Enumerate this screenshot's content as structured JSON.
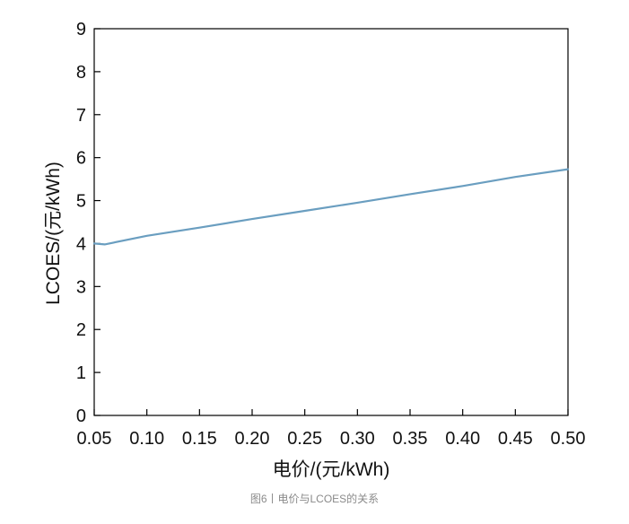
{
  "caption": "图6丨电价与LCOES的关系",
  "colors": {
    "line": "#6a9ec0",
    "axis": "#000000",
    "text": "#111111",
    "caption": "#8a8a8a"
  },
  "chart_data": {
    "type": "line",
    "title": "",
    "xlabel": "电价/(元/kWh)",
    "ylabel": "LCOES/(元/kWh)",
    "xlim": [
      0.05,
      0.5
    ],
    "ylim": [
      0,
      9
    ],
    "xticks": [
      "0.05",
      "0.10",
      "0.15",
      "0.20",
      "0.25",
      "0.30",
      "0.35",
      "0.40",
      "0.45",
      "0.50"
    ],
    "yticks": [
      "0",
      "1",
      "2",
      "3",
      "4",
      "5",
      "6",
      "7",
      "8",
      "9"
    ],
    "grid": false,
    "legend": "none",
    "series": [
      {
        "x": [
          0.05,
          0.06,
          0.1,
          0.15,
          0.2,
          0.25,
          0.3,
          0.35,
          0.4,
          0.45,
          0.5
        ],
        "y": [
          4.0,
          3.98,
          4.18,
          4.37,
          4.57,
          4.76,
          4.95,
          5.15,
          5.34,
          5.55,
          5.73
        ]
      }
    ]
  }
}
